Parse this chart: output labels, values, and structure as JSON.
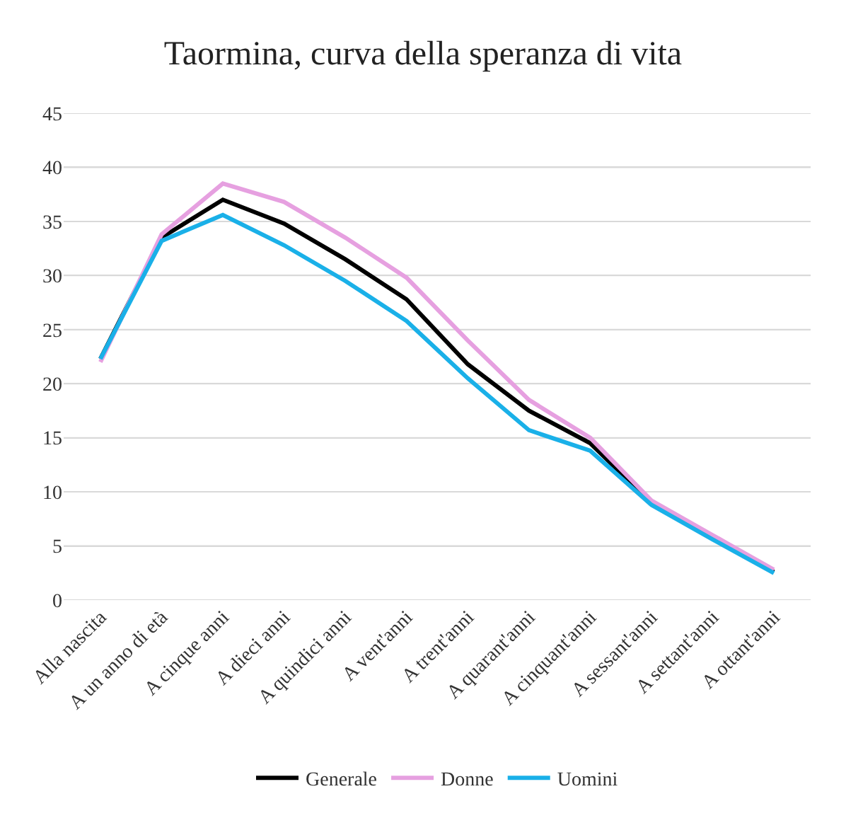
{
  "chart_data": {
    "type": "line",
    "title": "Taormina, curva della speranza di vita",
    "categories": [
      "Alla nascita",
      "A un anno di età",
      "A cinque anni",
      "A dieci anni",
      "A quindici anni",
      "A vent'anni",
      "A trent'anni",
      "A quarant'anni",
      "A cinquant'anni",
      "A sessant'anni",
      "A settant'anni",
      "A ottant'anni"
    ],
    "series": [
      {
        "name": "Generale",
        "color": "#000000",
        "values": [
          22.3,
          33.5,
          37,
          34.8,
          31.5,
          27.8,
          21.8,
          17.5,
          14.5,
          9,
          5.8,
          2.6
        ]
      },
      {
        "name": "Donne",
        "color": "#e6a0e0",
        "values": [
          22,
          33.8,
          38.5,
          36.8,
          33.5,
          29.8,
          24,
          18.5,
          15,
          9.2,
          6,
          2.8
        ]
      },
      {
        "name": "Uomini",
        "color": "#1ab0e8",
        "values": [
          22.3,
          33.2,
          35.6,
          32.8,
          29.5,
          25.8,
          20.5,
          15.7,
          13.8,
          8.8,
          5.6,
          2.5
        ]
      }
    ],
    "ylim": [
      0,
      45
    ],
    "yticks": [
      0,
      5,
      10,
      15,
      20,
      25,
      30,
      35,
      40,
      45
    ],
    "grid": "y",
    "legend": "bottom",
    "marker": "none",
    "line_style": "solid"
  }
}
